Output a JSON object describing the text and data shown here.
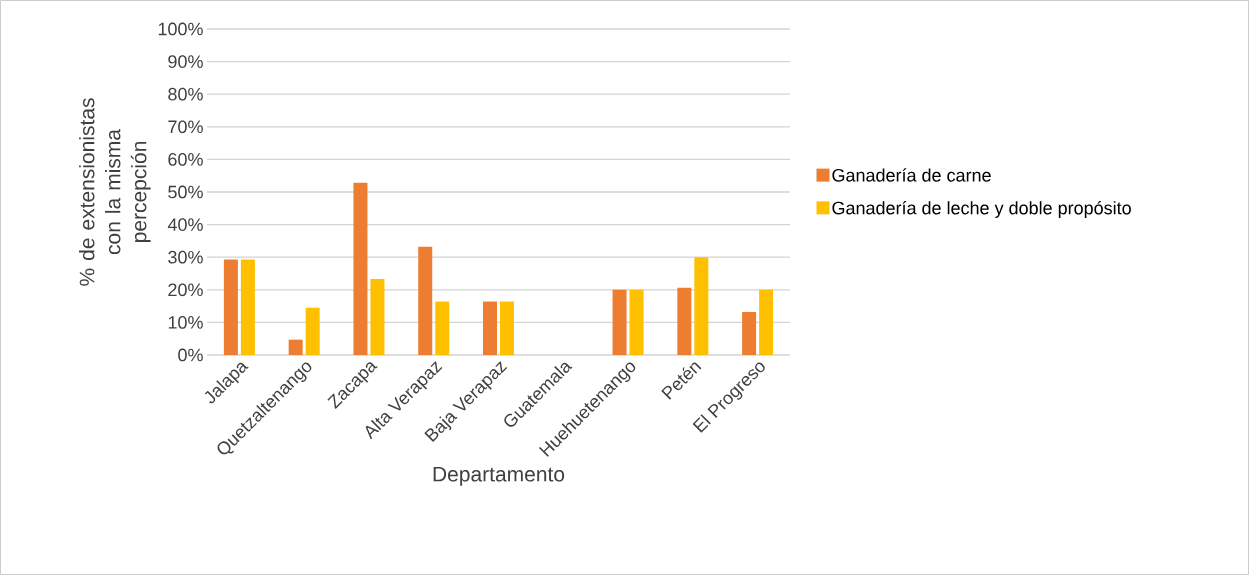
{
  "chart_data": {
    "type": "bar",
    "xlabel": "Departamento",
    "ylabel": "% de extensionistas con la misma percepción",
    "categories": [
      "Jalapa",
      "Quetzaltenango",
      "Zacapa",
      "Alta Verapaz",
      "Baja Verapaz",
      "Guatemala",
      "Huehuetenango",
      "Petén",
      "El Progreso"
    ],
    "series": [
      {
        "name": "Ganadería de carne",
        "color": "#ed7d31",
        "values": [
          29.3,
          4.7,
          52.8,
          33.2,
          16.4,
          0,
          20,
          20.6,
          13.2
        ]
      },
      {
        "name": "Ganadería de leche y doble propósito",
        "color": "#ffc000",
        "values": [
          29.3,
          14.5,
          23.3,
          16.4,
          16.4,
          0,
          20,
          30,
          20
        ]
      }
    ],
    "ylim": [
      0,
      100
    ],
    "yticks": [
      {
        "value": 0,
        "label": "0%"
      },
      {
        "value": 10,
        "label": "10%"
      },
      {
        "value": 20,
        "label": "20%"
      },
      {
        "value": 30,
        "label": "30%"
      },
      {
        "value": 40,
        "label": "40%"
      },
      {
        "value": 50,
        "label": "50%"
      },
      {
        "value": 60,
        "label": "60%"
      },
      {
        "value": 70,
        "label": "70%"
      },
      {
        "value": 80,
        "label": "80%"
      },
      {
        "value": 90,
        "label": "90%"
      },
      {
        "value": 100,
        "label": "100%"
      }
    ],
    "grid": "y",
    "legend": "right"
  }
}
